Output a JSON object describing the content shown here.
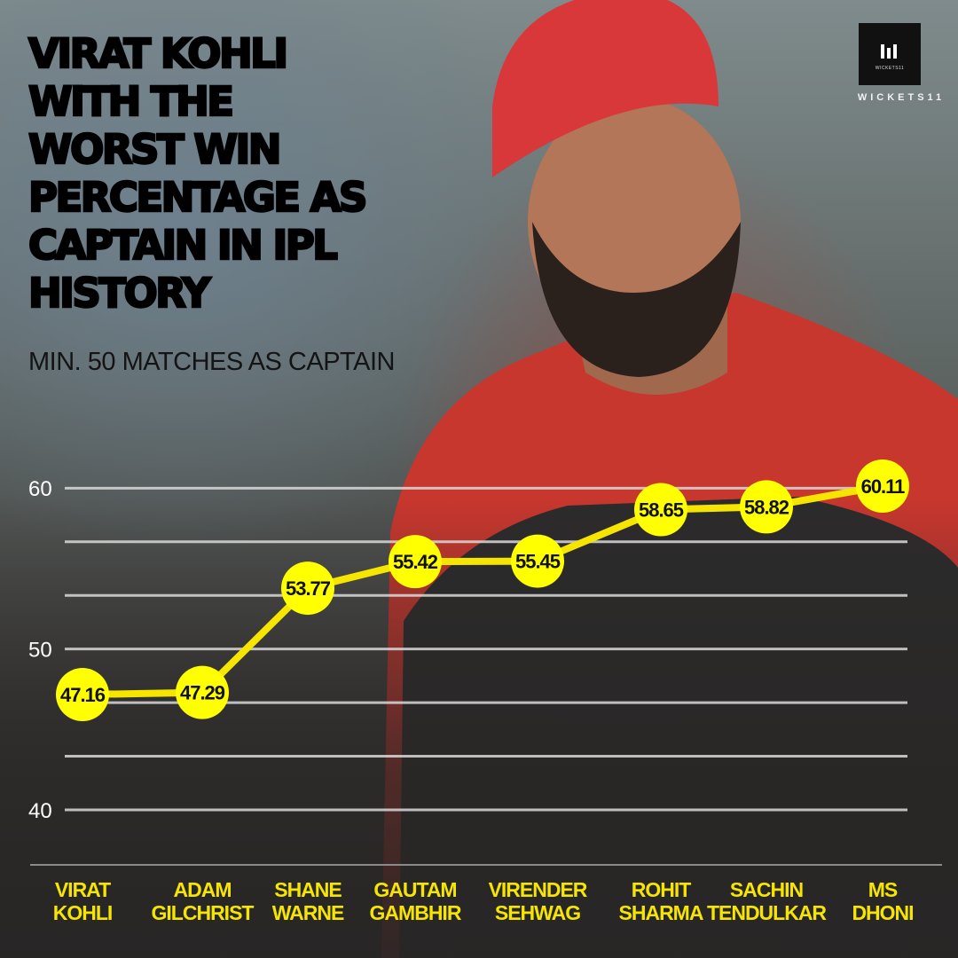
{
  "title": "VIRAT KOHLI\nWITH THE\nWORST WIN\nPERCENTAGE AS\nCAPTAIN IN IPL\nHISTORY",
  "subtitle": "MIN. 50 MATCHES AS CAPTAIN",
  "brand": {
    "name": "WICKETS11",
    "box_text": "WICKETS11"
  },
  "colors": {
    "accent": "#F5E500",
    "line": "#F5E500",
    "marker": "#FFFF00",
    "gridline": "#D9D9D9",
    "tick_text": "#FFFFFF"
  },
  "chart_data": {
    "type": "line",
    "categories": [
      "VIRAT\nKOHLI",
      "ADAM\nGILCHRIST",
      "SHANE\nWARNE",
      "GAUTAM\nGAMBHIR",
      "VIRENDER\nSEHWAG",
      "ROHIT\nSHARMA",
      "SACHIN\nTENDULKAR",
      "MS\nDHONI"
    ],
    "values": [
      47.16,
      47.29,
      53.77,
      55.42,
      55.45,
      58.65,
      58.82,
      60.11
    ],
    "value_labels": [
      "47.16",
      "47.29",
      "53.77",
      "55.42",
      "55.45",
      "58.65",
      "58.82",
      "60.11"
    ],
    "yticks": [
      40,
      50,
      60
    ],
    "ytick_labels": [
      "40",
      "50",
      "60"
    ],
    "ylim": [
      40,
      60
    ],
    "gridline_step": 3.33,
    "grid": true,
    "legend": "none",
    "title": "",
    "xlabel": "",
    "ylabel": ""
  }
}
